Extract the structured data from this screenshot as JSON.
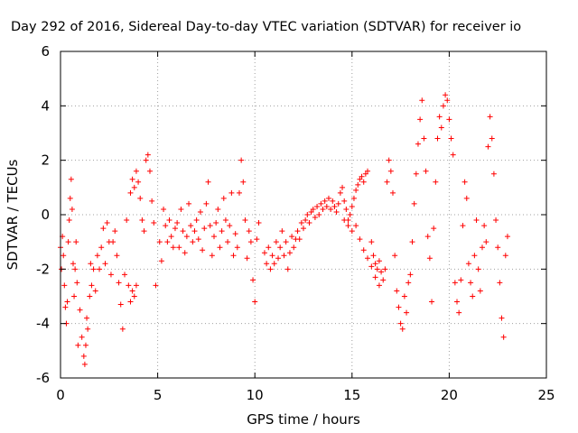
{
  "chart_data": {
    "type": "scatter",
    "title": "Day 292 of 2016, Sidereal Day-to-day VTEC variation (SDTVAR) for receiver io",
    "xlabel": "GPS time / hours",
    "ylabel": "SDTVAR / TECUs",
    "xlim": [
      0,
      25
    ],
    "ylim": [
      -6,
      6
    ],
    "xticks": [
      0,
      5,
      10,
      15,
      20,
      25
    ],
    "yticks": [
      -6,
      -4,
      -2,
      0,
      2,
      4,
      6
    ],
    "grid": true,
    "marker": "+",
    "color": "#ff0000",
    "series": [
      {
        "name": "SDTVAR",
        "points": [
          [
            0.0,
            -1.2
          ],
          [
            0.05,
            -2.0
          ],
          [
            0.1,
            -0.8
          ],
          [
            0.15,
            -1.5
          ],
          [
            0.2,
            -2.6
          ],
          [
            0.25,
            -3.4
          ],
          [
            0.3,
            -4.0
          ],
          [
            0.35,
            -3.2
          ],
          [
            0.4,
            -1.0
          ],
          [
            0.45,
            -0.2
          ],
          [
            0.5,
            0.6
          ],
          [
            0.55,
            1.3
          ],
          [
            0.6,
            0.2
          ],
          [
            0.65,
            -1.8
          ],
          [
            0.7,
            -3.0
          ],
          [
            0.75,
            -2.0
          ],
          [
            0.8,
            -1.0
          ],
          [
            0.85,
            -2.5
          ],
          [
            0.9,
            -4.8
          ],
          [
            1.0,
            -3.5
          ],
          [
            1.1,
            -4.5
          ],
          [
            1.2,
            -5.2
          ],
          [
            1.25,
            -5.5
          ],
          [
            1.3,
            -4.8
          ],
          [
            1.35,
            -3.8
          ],
          [
            1.4,
            -4.2
          ],
          [
            1.5,
            -3.0
          ],
          [
            1.55,
            -1.8
          ],
          [
            1.6,
            -2.6
          ],
          [
            1.7,
            -2.0
          ],
          [
            1.8,
            -2.8
          ],
          [
            1.9,
            -1.5
          ],
          [
            2.0,
            -2.0
          ],
          [
            2.1,
            -1.2
          ],
          [
            2.2,
            -0.5
          ],
          [
            2.3,
            -1.8
          ],
          [
            2.4,
            -0.3
          ],
          [
            2.5,
            -1.0
          ],
          [
            2.6,
            -2.2
          ],
          [
            2.7,
            -1.0
          ],
          [
            2.8,
            -0.6
          ],
          [
            2.9,
            -1.5
          ],
          [
            3.0,
            -2.5
          ],
          [
            3.1,
            -3.3
          ],
          [
            3.2,
            -4.2
          ],
          [
            3.3,
            -2.2
          ],
          [
            3.4,
            -0.2
          ],
          [
            3.5,
            -2.6
          ],
          [
            3.6,
            -3.2
          ],
          [
            3.7,
            -2.8
          ],
          [
            3.8,
            -3.0
          ],
          [
            3.9,
            -2.6
          ],
          [
            3.6,
            0.8
          ],
          [
            3.7,
            1.3
          ],
          [
            3.8,
            1.0
          ],
          [
            3.9,
            1.6
          ],
          [
            4.0,
            1.2
          ],
          [
            4.1,
            0.6
          ],
          [
            4.2,
            -0.2
          ],
          [
            4.3,
            -0.6
          ],
          [
            4.4,
            2.0
          ],
          [
            4.5,
            2.2
          ],
          [
            4.6,
            1.6
          ],
          [
            4.7,
            0.5
          ],
          [
            4.8,
            -0.3
          ],
          [
            4.9,
            -2.6
          ],
          [
            5.1,
            -1.0
          ],
          [
            5.2,
            -1.7
          ],
          [
            5.3,
            0.2
          ],
          [
            5.4,
            -0.4
          ],
          [
            5.5,
            -1.0
          ],
          [
            5.6,
            -0.2
          ],
          [
            5.7,
            -0.8
          ],
          [
            5.8,
            -1.2
          ],
          [
            5.9,
            -0.5
          ],
          [
            6.0,
            -0.3
          ],
          [
            6.1,
            -1.2
          ],
          [
            6.2,
            0.2
          ],
          [
            6.3,
            -0.6
          ],
          [
            6.4,
            -1.4
          ],
          [
            6.5,
            -0.8
          ],
          [
            6.6,
            0.4
          ],
          [
            6.7,
            -0.4
          ],
          [
            6.8,
            -1.0
          ],
          [
            6.9,
            -0.6
          ],
          [
            7.0,
            -0.2
          ],
          [
            7.1,
            -0.9
          ],
          [
            7.2,
            0.1
          ],
          [
            7.3,
            -1.3
          ],
          [
            7.4,
            -0.5
          ],
          [
            7.5,
            0.4
          ],
          [
            7.6,
            1.2
          ],
          [
            7.7,
            -0.4
          ],
          [
            7.8,
            -1.5
          ],
          [
            7.9,
            -0.8
          ],
          [
            8.0,
            -0.3
          ],
          [
            8.1,
            0.2
          ],
          [
            8.2,
            -1.2
          ],
          [
            8.3,
            -0.6
          ],
          [
            8.4,
            0.6
          ],
          [
            8.5,
            -0.2
          ],
          [
            8.6,
            -1.0
          ],
          [
            8.7,
            -0.4
          ],
          [
            8.8,
            0.8
          ],
          [
            8.9,
            -1.5
          ],
          [
            9.0,
            -0.7
          ],
          [
            9.1,
            -1.2
          ],
          [
            9.2,
            0.8
          ],
          [
            9.3,
            2.0
          ],
          [
            9.4,
            1.2
          ],
          [
            9.5,
            -0.2
          ],
          [
            9.6,
            -1.6
          ],
          [
            9.7,
            -0.6
          ],
          [
            9.8,
            -1.0
          ],
          [
            9.9,
            -2.4
          ],
          [
            10.0,
            -3.2
          ],
          [
            10.1,
            -0.9
          ],
          [
            10.2,
            -0.3
          ],
          [
            10.5,
            -1.4
          ],
          [
            10.6,
            -1.8
          ],
          [
            10.7,
            -1.2
          ],
          [
            10.8,
            -2.0
          ],
          [
            10.9,
            -1.5
          ],
          [
            11.0,
            -1.8
          ],
          [
            11.1,
            -1.0
          ],
          [
            11.2,
            -1.6
          ],
          [
            11.3,
            -1.2
          ],
          [
            11.4,
            -0.6
          ],
          [
            11.5,
            -1.5
          ],
          [
            11.6,
            -1.0
          ],
          [
            11.7,
            -2.0
          ],
          [
            11.8,
            -1.4
          ],
          [
            11.9,
            -0.8
          ],
          [
            12.0,
            -1.2
          ],
          [
            12.1,
            -0.9
          ],
          [
            12.2,
            -0.6
          ],
          [
            12.3,
            -0.9
          ],
          [
            12.4,
            -0.3
          ],
          [
            12.5,
            -0.5
          ],
          [
            12.6,
            -0.2
          ],
          [
            12.7,
            0.0
          ],
          [
            12.8,
            -0.3
          ],
          [
            12.9,
            0.1
          ],
          [
            13.0,
            0.2
          ],
          [
            13.1,
            -0.1
          ],
          [
            13.2,
            0.3
          ],
          [
            13.3,
            0.0
          ],
          [
            13.4,
            0.4
          ],
          [
            13.5,
            0.2
          ],
          [
            13.6,
            0.5
          ],
          [
            13.7,
            0.3
          ],
          [
            13.8,
            0.6
          ],
          [
            13.9,
            0.2
          ],
          [
            14.0,
            0.5
          ],
          [
            14.1,
            0.3
          ],
          [
            14.2,
            0.1
          ],
          [
            14.3,
            0.4
          ],
          [
            14.4,
            0.8
          ],
          [
            14.5,
            1.0
          ],
          [
            14.6,
            0.5
          ],
          [
            14.7,
            0.2
          ],
          [
            14.8,
            -0.2
          ],
          [
            14.9,
            0.0
          ],
          [
            15.0,
            0.3
          ],
          [
            15.1,
            0.6
          ],
          [
            15.2,
            0.9
          ],
          [
            15.3,
            1.1
          ],
          [
            15.4,
            1.3
          ],
          [
            15.5,
            1.4
          ],
          [
            15.6,
            1.2
          ],
          [
            15.7,
            1.5
          ],
          [
            15.8,
            1.6
          ],
          [
            14.6,
            -0.2
          ],
          [
            14.8,
            -0.4
          ],
          [
            15.0,
            -0.6
          ],
          [
            15.2,
            -0.4
          ],
          [
            15.4,
            -0.9
          ],
          [
            15.6,
            -1.3
          ],
          [
            15.8,
            -1.6
          ],
          [
            16.0,
            -1.9
          ],
          [
            16.2,
            -2.3
          ],
          [
            16.4,
            -2.6
          ],
          [
            16.0,
            -1.0
          ],
          [
            16.1,
            -1.5
          ],
          [
            16.2,
            -1.8
          ],
          [
            16.3,
            -2.0
          ],
          [
            16.4,
            -1.7
          ],
          [
            16.5,
            -2.1
          ],
          [
            16.6,
            -2.4
          ],
          [
            16.7,
            -2.0
          ],
          [
            16.8,
            1.2
          ],
          [
            16.9,
            2.0
          ],
          [
            17.0,
            1.6
          ],
          [
            17.1,
            0.8
          ],
          [
            17.2,
            -1.5
          ],
          [
            17.3,
            -2.8
          ],
          [
            17.4,
            -3.4
          ],
          [
            17.5,
            -4.0
          ],
          [
            17.6,
            -4.2
          ],
          [
            17.7,
            -3.0
          ],
          [
            17.8,
            -3.6
          ],
          [
            17.9,
            -2.5
          ],
          [
            18.0,
            -2.2
          ],
          [
            18.1,
            -1.0
          ],
          [
            18.2,
            0.4
          ],
          [
            18.3,
            1.5
          ],
          [
            18.4,
            2.6
          ],
          [
            18.5,
            3.5
          ],
          [
            18.6,
            4.2
          ],
          [
            18.7,
            2.8
          ],
          [
            18.8,
            1.6
          ],
          [
            18.9,
            -0.8
          ],
          [
            19.0,
            -1.6
          ],
          [
            19.1,
            -3.2
          ],
          [
            19.2,
            -0.5
          ],
          [
            19.3,
            1.2
          ],
          [
            19.4,
            2.8
          ],
          [
            19.5,
            3.6
          ],
          [
            19.6,
            3.2
          ],
          [
            19.7,
            4.0
          ],
          [
            19.8,
            4.4
          ],
          [
            19.9,
            4.2
          ],
          [
            20.0,
            3.5
          ],
          [
            20.1,
            2.8
          ],
          [
            20.2,
            2.2
          ],
          [
            20.3,
            -2.5
          ],
          [
            20.4,
            -3.2
          ],
          [
            20.5,
            -3.6
          ],
          [
            20.6,
            -2.4
          ],
          [
            20.7,
            -0.4
          ],
          [
            20.8,
            1.2
          ],
          [
            20.9,
            0.6
          ],
          [
            21.0,
            -1.8
          ],
          [
            21.1,
            -2.5
          ],
          [
            21.2,
            -3.0
          ],
          [
            21.3,
            -1.5
          ],
          [
            21.4,
            -0.2
          ],
          [
            21.5,
            -2.0
          ],
          [
            21.6,
            -2.8
          ],
          [
            21.7,
            -1.2
          ],
          [
            21.8,
            -0.4
          ],
          [
            21.9,
            -1.0
          ],
          [
            22.0,
            2.5
          ],
          [
            22.1,
            3.6
          ],
          [
            22.2,
            2.8
          ],
          [
            22.3,
            1.5
          ],
          [
            22.4,
            -0.2
          ],
          [
            22.5,
            -1.2
          ],
          [
            22.6,
            -2.5
          ],
          [
            22.7,
            -3.8
          ],
          [
            22.8,
            -4.5
          ],
          [
            22.9,
            -1.5
          ],
          [
            23.0,
            -0.8
          ]
        ]
      }
    ]
  }
}
